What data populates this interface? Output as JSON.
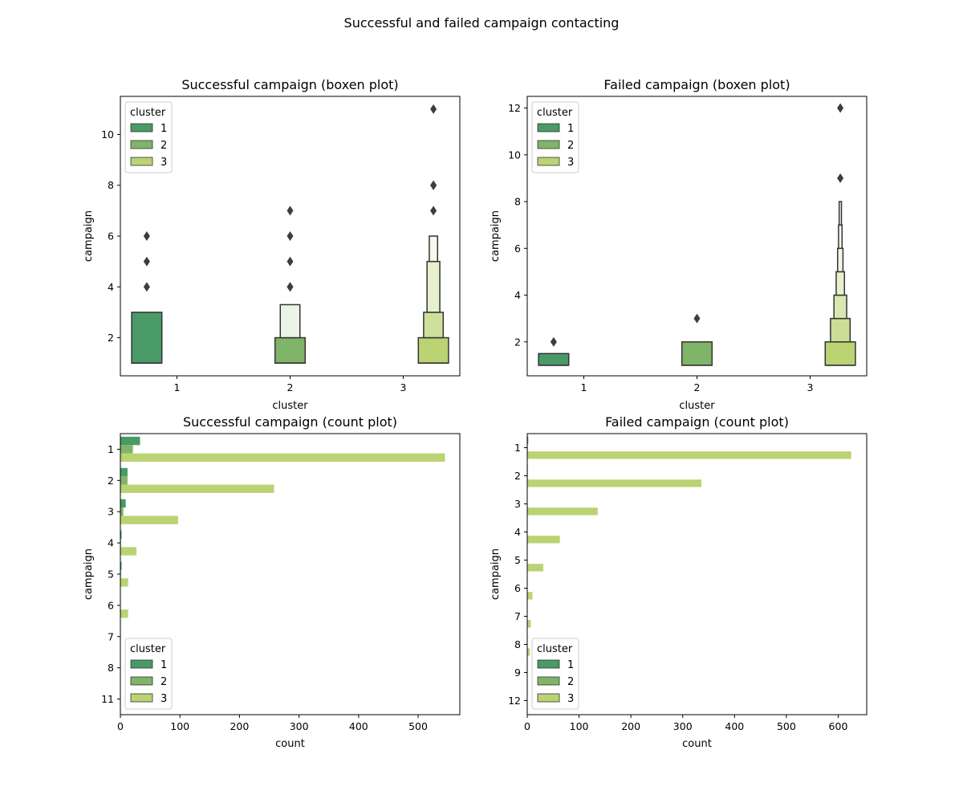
{
  "figure": {
    "suptitle": "Successful and failed campaign contacting"
  },
  "palette": {
    "1": "#4a9a68",
    "2": "#80b468",
    "3": "#bad373",
    "edge": "#333333",
    "outlier": "#3d3d3d"
  },
  "chart_data": [
    {
      "type": "boxen",
      "title": "Successful campaign (boxen plot)",
      "xlabel": "cluster",
      "ylabel": "campaign",
      "categories": [
        "1",
        "2",
        "3"
      ],
      "ylim": [
        0.5,
        11.5
      ],
      "yticks": [
        2,
        4,
        6,
        8,
        10
      ],
      "legend": {
        "title": "cluster",
        "entries": [
          "1",
          "2",
          "3"
        ],
        "position": "upper-left"
      },
      "groups": [
        {
          "cluster": "1",
          "boxes": [
            {
              "low": 1,
              "high": 3,
              "shade": 0
            }
          ],
          "outliers": [
            4,
            5,
            6
          ]
        },
        {
          "cluster": "2",
          "boxes": [
            {
              "low": 1,
              "high": 2,
              "shade": 0
            },
            {
              "low": 2,
              "high": 3.3,
              "shade": 0.85
            }
          ],
          "outliers": [
            4,
            4,
            5,
            6,
            7
          ]
        },
        {
          "cluster": "3",
          "boxes": [
            {
              "low": 1,
              "high": 2,
              "shade": 0
            },
            {
              "low": 2,
              "high": 3,
              "shade": 0.3
            },
            {
              "low": 3,
              "high": 5,
              "shade": 0.65
            },
            {
              "low": 5,
              "high": 6,
              "shade": 0.85
            }
          ],
          "outliers": [
            7,
            8,
            8,
            11
          ]
        }
      ]
    },
    {
      "type": "boxen",
      "title": "Failed campaign (boxen plot)",
      "xlabel": "cluster",
      "ylabel": "campaign",
      "categories": [
        "1",
        "2",
        "3"
      ],
      "ylim": [
        0.55,
        12.5
      ],
      "yticks": [
        2,
        4,
        6,
        8,
        10,
        12
      ],
      "legend": {
        "title": "cluster",
        "entries": [
          "1",
          "2",
          "3"
        ],
        "position": "upper-left"
      },
      "groups": [
        {
          "cluster": "1",
          "boxes": [
            {
              "low": 1,
              "high": 1.5,
              "shade": 0
            }
          ],
          "outliers": [
            2
          ]
        },
        {
          "cluster": "2",
          "boxes": [
            {
              "low": 1,
              "high": 2,
              "shade": 0
            }
          ],
          "outliers": [
            3
          ]
        },
        {
          "cluster": "3",
          "boxes": [
            {
              "low": 1,
              "high": 2,
              "shade": 0
            },
            {
              "low": 2,
              "high": 3,
              "shade": 0.25
            },
            {
              "low": 3,
              "high": 4,
              "shade": 0.45
            },
            {
              "low": 4,
              "high": 5,
              "shade": 0.65
            },
            {
              "low": 5,
              "high": 6,
              "shade": 0.8
            },
            {
              "low": 6,
              "high": 7,
              "shade": 0.9
            },
            {
              "low": 7,
              "high": 8,
              "shade": 0.95
            }
          ],
          "outliers": [
            9,
            12
          ]
        }
      ]
    },
    {
      "type": "bar",
      "orientation": "horizontal",
      "title": "Successful campaign (count plot)",
      "xlabel": "count",
      "ylabel": "campaign",
      "categories": [
        "1",
        "2",
        "3",
        "4",
        "5",
        "6",
        "7",
        "8",
        "11"
      ],
      "xlim": [
        0,
        570
      ],
      "xticks": [
        0,
        100,
        200,
        300,
        400,
        500
      ],
      "legend": {
        "title": "cluster",
        "entries": [
          "1",
          "2",
          "3"
        ],
        "position": "lower-left"
      },
      "series": [
        {
          "name": "1",
          "values": [
            33,
            12,
            9,
            2,
            2,
            0,
            0,
            0,
            0
          ]
        },
        {
          "name": "2",
          "values": [
            21,
            12,
            5,
            1,
            1,
            0,
            0,
            0,
            0
          ]
        },
        {
          "name": "3",
          "values": [
            545,
            258,
            97,
            27,
            13,
            13,
            0,
            0,
            0
          ]
        }
      ]
    },
    {
      "type": "bar",
      "orientation": "horizontal",
      "title": "Failed campaign (count plot)",
      "xlabel": "count",
      "ylabel": "campaign",
      "categories": [
        "1",
        "2",
        "3",
        "4",
        "5",
        "6",
        "7",
        "8",
        "9",
        "12"
      ],
      "xlim": [
        0,
        655
      ],
      "xticks": [
        0,
        100,
        200,
        300,
        400,
        500,
        600
      ],
      "legend": {
        "title": "cluster",
        "entries": [
          "1",
          "2",
          "3"
        ],
        "position": "lower-left"
      },
      "series": [
        {
          "name": "1",
          "values": [
            2,
            1,
            0,
            0,
            0,
            0,
            0,
            0,
            0,
            0
          ]
        },
        {
          "name": "2",
          "values": [
            1,
            1,
            0,
            0,
            0,
            0,
            0,
            0,
            0,
            0
          ]
        },
        {
          "name": "3",
          "values": [
            625,
            336,
            136,
            63,
            31,
            10,
            7,
            5,
            0,
            0
          ]
        }
      ]
    }
  ]
}
